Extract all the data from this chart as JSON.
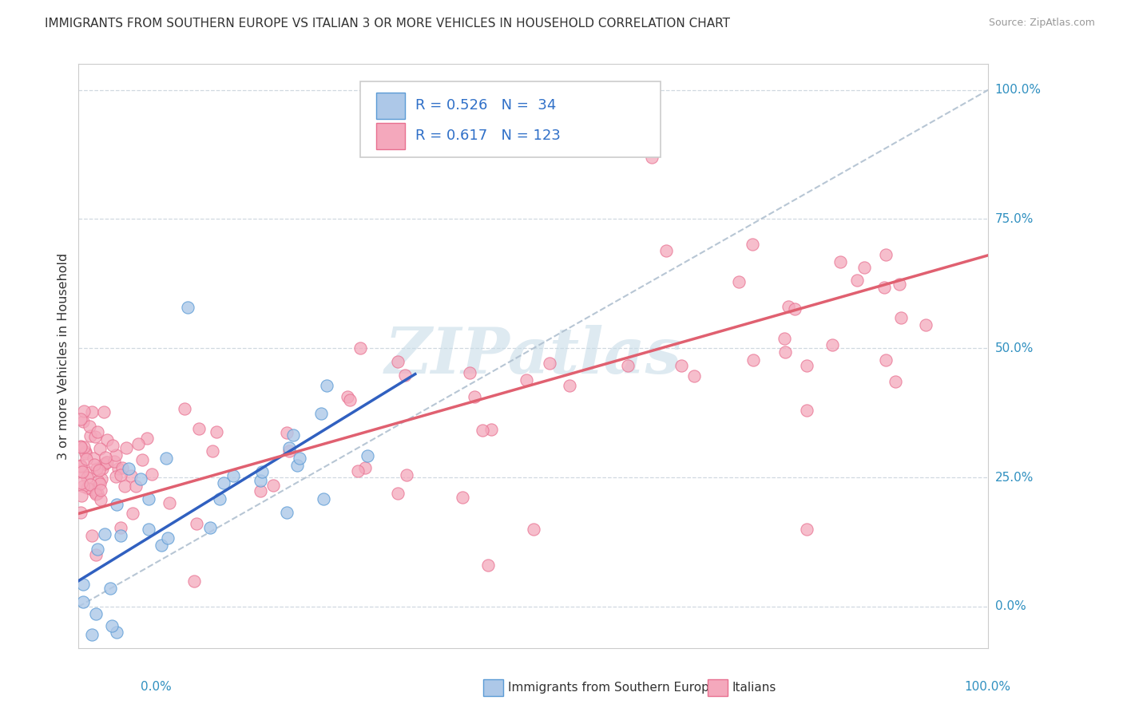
{
  "title": "IMMIGRANTS FROM SOUTHERN EUROPE VS ITALIAN 3 OR MORE VEHICLES IN HOUSEHOLD CORRELATION CHART",
  "source": "Source: ZipAtlas.com",
  "ylabel": "3 or more Vehicles in Household",
  "legend_label1": "Immigrants from Southern Europe",
  "legend_label2": "Italians",
  "legend_R1": "0.526",
  "legend_N1": "34",
  "legend_R2": "0.617",
  "legend_N2": "123",
  "color_blue_fill": "#adc8e8",
  "color_pink_fill": "#f4a8bc",
  "color_blue_edge": "#5b9bd5",
  "color_pink_edge": "#e87090",
  "color_blue_line": "#3060c0",
  "color_pink_line": "#e06070",
  "color_diag": "#b0c0d0",
  "color_grid": "#d0d8e0",
  "color_axis_label": "#3090c0",
  "color_text": "#333333",
  "color_watermark": "#c8dce8",
  "watermark": "ZIPatlas",
  "blue_trend_x0": 0.0,
  "blue_trend_y0": 0.05,
  "blue_trend_x1": 0.37,
  "blue_trend_y1": 0.45,
  "pink_trend_x0": 0.0,
  "pink_trend_y0": 0.18,
  "pink_trend_x1": 1.0,
  "pink_trend_y1": 0.68,
  "xlim": [
    0.0,
    1.0
  ],
  "ylim": [
    -0.08,
    1.05
  ],
  "y_ticks": [
    0.0,
    0.25,
    0.5,
    0.75,
    1.0
  ],
  "y_tick_labels": [
    "0.0%",
    "25.0%",
    "50.0%",
    "75.0%",
    "100.0%"
  ],
  "figsize": [
    14.06,
    8.92
  ],
  "dpi": 100
}
